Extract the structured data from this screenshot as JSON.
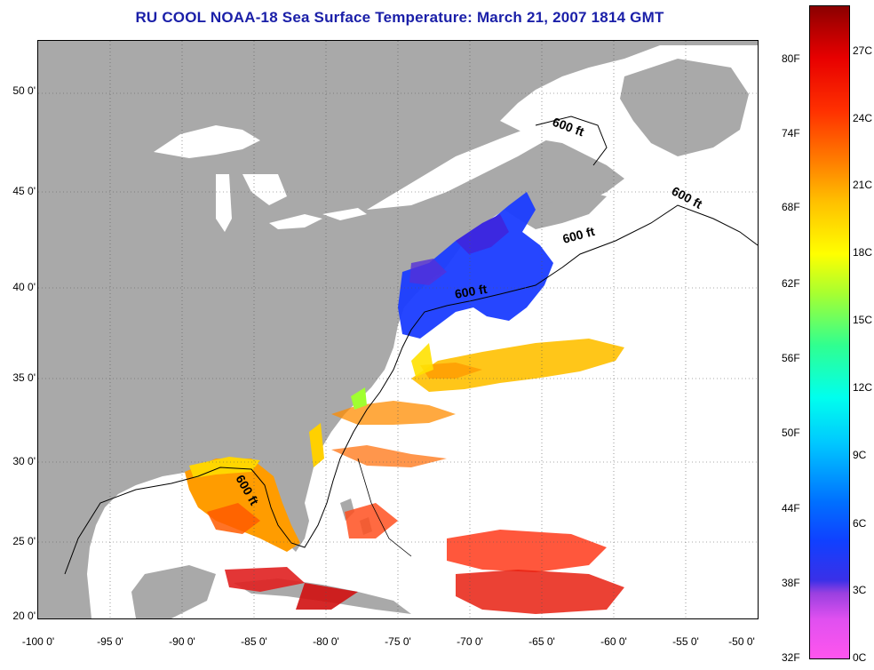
{
  "title": "RU COOL  NOAA-18  Sea Surface Temperature:  March 21, 2007 1814 GMT",
  "lat_labels": [
    "50 0'",
    "45 0'",
    "40 0'",
    "35 0'",
    "30 0'",
    "25 0'",
    "20 0'"
  ],
  "lon_labels": [
    "-100 0'",
    "-95 0'",
    "-90 0'",
    "-85 0'",
    "-80 0'",
    "-75 0'",
    "-70 0'",
    "-65 0'",
    "-60 0'",
    "-55 0'",
    "-50 0'"
  ],
  "contour_labels": [
    "600 ft",
    "600 ft",
    "600 ft",
    "600 ft",
    "600 ft"
  ],
  "colorbar": {
    "fahrenheit": [
      "80F",
      "74F",
      "68F",
      "62F",
      "56F",
      "50F",
      "44F",
      "38F",
      "32F"
    ],
    "celsius": [
      "27C",
      "24C",
      "21C",
      "18C",
      "15C",
      "12C",
      "9C",
      "6C",
      "3C",
      "0C"
    ]
  },
  "colors": {
    "land": "#a9a9a9",
    "ocean_nodata": "#ffffff",
    "title": "#1a1fa8",
    "gulf_maine_cold": "#1a3cff",
    "gulf_stream_warm": "#ffb000",
    "tropical_warm": "#e02020"
  }
}
